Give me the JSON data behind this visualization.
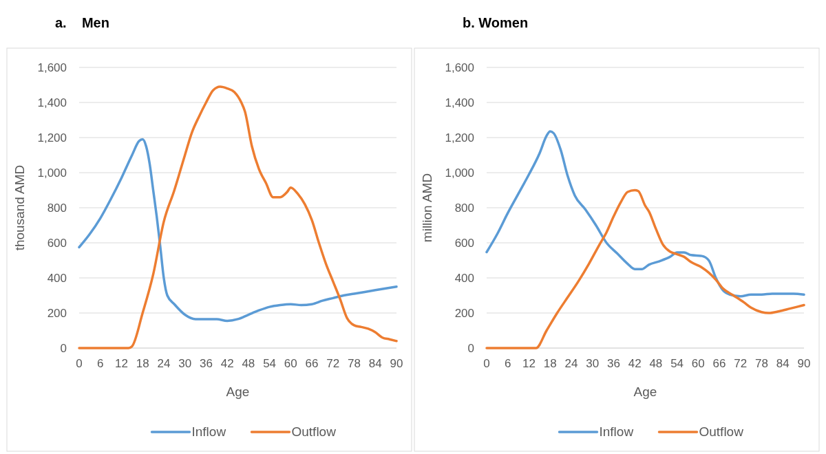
{
  "chart_data": [
    {
      "type": "line",
      "title": "a.    Men",
      "xlabel": "Age",
      "ylabel": "thousand AMD",
      "xlim": [
        0,
        90
      ],
      "xticks": [
        0,
        6,
        12,
        18,
        24,
        30,
        36,
        42,
        48,
        54,
        60,
        66,
        72,
        78,
        84,
        90
      ],
      "ylim": [
        0,
        1600
      ],
      "yticks": [
        {
          "value": 0,
          "label": "0"
        },
        {
          "value": 200,
          "label": "200"
        },
        {
          "value": 400,
          "label": "400"
        },
        {
          "value": 600,
          "label": "600"
        },
        {
          "value": 800,
          "label": "800"
        },
        {
          "value": 1000,
          "label": "1,000"
        },
        {
          "value": 1200,
          "label": "1,200"
        },
        {
          "value": 1400,
          "label": "1,400"
        },
        {
          "value": 1600,
          "label": "1,600"
        }
      ],
      "grid": "y",
      "legend": "bottom",
      "marker": "none",
      "line_style": "solid",
      "series": [
        {
          "name": "Inflow",
          "color": "#5b9bd5",
          "x": [
            0,
            3,
            6,
            9,
            12,
            15,
            17,
            18,
            19,
            20,
            21,
            22,
            23,
            24,
            25,
            27,
            30,
            33,
            36,
            39,
            42,
            45,
            48,
            51,
            54,
            57,
            60,
            63,
            66,
            69,
            72,
            75,
            78,
            81,
            84,
            87,
            90
          ],
          "values": [
            575,
            650,
            740,
            850,
            970,
            1100,
            1180,
            1190,
            1150,
            1050,
            900,
            750,
            580,
            400,
            300,
            250,
            190,
            165,
            165,
            165,
            155,
            165,
            190,
            215,
            235,
            245,
            250,
            245,
            250,
            270,
            285,
            300,
            310,
            320,
            330,
            340,
            350
          ]
        },
        {
          "name": "Outflow",
          "color": "#ed7d31",
          "x": [
            0,
            5,
            10,
            14,
            15,
            18,
            21,
            24,
            27,
            30,
            32,
            34,
            36,
            38,
            40,
            42,
            44,
            46,
            47,
            49,
            51,
            53,
            55,
            57,
            59,
            60,
            62,
            64,
            66,
            68,
            70,
            72,
            74,
            76,
            78,
            80,
            82,
            84,
            86,
            88,
            90
          ],
          "values": [
            0,
            0,
            0,
            0,
            10,
            200,
            420,
            720,
            900,
            1100,
            1230,
            1320,
            1400,
            1470,
            1490,
            1480,
            1460,
            1400,
            1350,
            1150,
            1020,
            940,
            860,
            860,
            890,
            915,
            880,
            820,
            730,
            600,
            480,
            380,
            280,
            170,
            130,
            120,
            110,
            90,
            60,
            50,
            40
          ]
        }
      ]
    },
    {
      "type": "line",
      "title": "b. Women",
      "xlabel": "Age",
      "ylabel": "million AMD",
      "xlim": [
        0,
        90
      ],
      "xticks": [
        0,
        6,
        12,
        18,
        24,
        30,
        36,
        42,
        48,
        54,
        60,
        66,
        72,
        78,
        84,
        90
      ],
      "ylim": [
        0,
        1600
      ],
      "yticks": [
        {
          "value": 0,
          "label": "0"
        },
        {
          "value": 200,
          "label": "200"
        },
        {
          "value": 400,
          "label": "400"
        },
        {
          "value": 600,
          "label": "600"
        },
        {
          "value": 800,
          "label": "800"
        },
        {
          "value": 1000,
          "label": "1,000"
        },
        {
          "value": 1200,
          "label": "1,200"
        },
        {
          "value": 1400,
          "label": "1,400"
        },
        {
          "value": 1600,
          "label": "1,600"
        }
      ],
      "grid": "y",
      "legend": "bottom",
      "marker": "none",
      "line_style": "solid",
      "series": [
        {
          "name": "Inflow",
          "color": "#5b9bd5",
          "x": [
            0,
            3,
            6,
            9,
            12,
            15,
            17,
            18,
            19,
            21,
            23,
            25,
            28,
            31,
            34,
            37,
            40,
            42,
            44,
            46,
            49,
            52,
            54,
            56,
            58,
            61,
            63,
            65,
            67,
            69,
            72,
            75,
            78,
            81,
            84,
            87,
            90
          ],
          "values": [
            547,
            650,
            770,
            880,
            990,
            1110,
            1210,
            1235,
            1225,
            1130,
            980,
            870,
            790,
            700,
            600,
            540,
            480,
            450,
            450,
            475,
            495,
            520,
            545,
            545,
            530,
            525,
            500,
            400,
            330,
            305,
            295,
            305,
            305,
            310,
            310,
            310,
            305
          ]
        },
        {
          "name": "Outflow",
          "color": "#ed7d31",
          "x": [
            0,
            5,
            10,
            14,
            17,
            20,
            23,
            26,
            29,
            32,
            34,
            36,
            38,
            40,
            42,
            43,
            45,
            46,
            48,
            50,
            52,
            54,
            56,
            58,
            61,
            63,
            65,
            67,
            70,
            73,
            75,
            78,
            80,
            83,
            86,
            90
          ],
          "values": [
            0,
            0,
            0,
            0,
            100,
            200,
            290,
            380,
            480,
            590,
            660,
            750,
            830,
            890,
            900,
            895,
            810,
            780,
            680,
            590,
            550,
            535,
            520,
            490,
            460,
            430,
            390,
            340,
            300,
            260,
            230,
            205,
            200,
            210,
            225,
            245
          ]
        }
      ]
    }
  ]
}
